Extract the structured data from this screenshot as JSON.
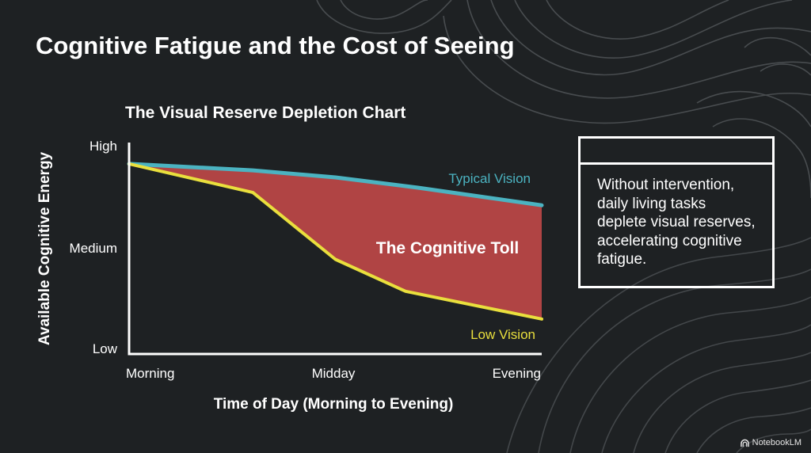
{
  "slide": {
    "title": "Cognitive Fatigue and the Cost of Seeing"
  },
  "chart_data": {
    "type": "area",
    "title": "The Visual Reserve Depletion Chart",
    "xlabel": "Time of Day (Morning to Evening)",
    "ylabel": "Available Cognitive Energy",
    "x_ticks": [
      "Morning",
      "Midday",
      "Evening"
    ],
    "y_ticks": [
      "Low",
      "Medium",
      "High"
    ],
    "xlim": [
      0,
      1
    ],
    "ylim": [
      0,
      1
    ],
    "grid": false,
    "series": [
      {
        "name": "Typical Vision",
        "color": "#4bb3c1",
        "x": [
          0,
          0.3,
          0.5,
          0.7,
          1
        ],
        "y": [
          0.914,
          0.882,
          0.847,
          0.796,
          0.709
        ]
      },
      {
        "name": "Low Vision",
        "color": "#e9df3d",
        "x": [
          0,
          0.3,
          0.5,
          0.67,
          1
        ],
        "y": [
          0.914,
          0.772,
          0.441,
          0.283,
          0.146
        ]
      }
    ],
    "gap_fill_color": "#b04444",
    "annotations": [
      {
        "text": "The Cognitive Toll"
      }
    ]
  },
  "note": {
    "header": "",
    "text": "Without intervention, daily living tasks deplete visual reserves, accelerating cognitive fatigue."
  },
  "brand": {
    "label": "NotebookLM",
    "icon": "notebooklm-logo-icon"
  }
}
